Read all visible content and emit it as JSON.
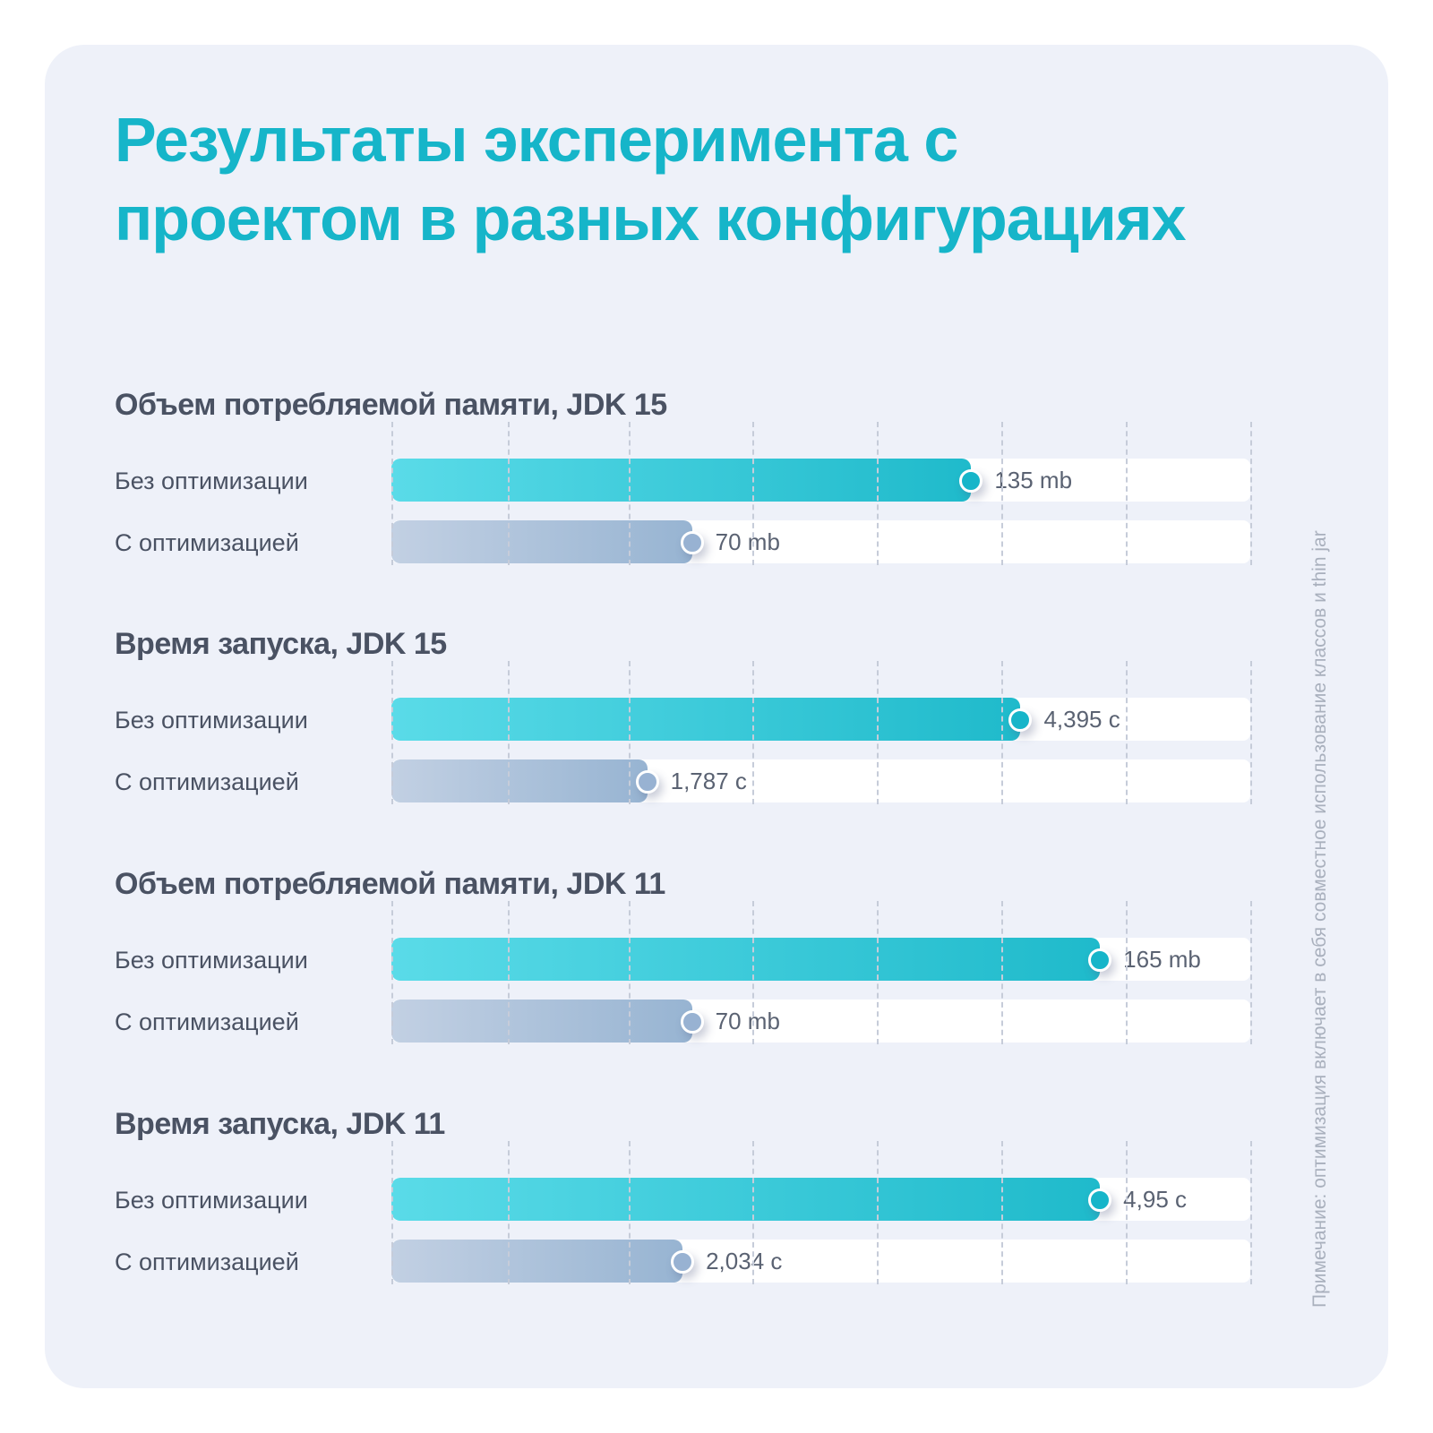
{
  "title": "Результаты эксперимента с проектом в разных конфигурациях",
  "note": "Примечание: оптимизация включает в себя совместное использование классов и thin jar",
  "colors": {
    "accent": "#16b5c9",
    "optimized": "#98b2d2",
    "background": "#eef1f9"
  },
  "chart_data": [
    {
      "type": "bar",
      "title": "Объем потребляемой памяти, JDK 15",
      "categories": [
        "Без оптимизации",
        "С оптимизацией"
      ],
      "values": [
        135,
        70
      ],
      "value_labels": [
        "135 mb",
        "70 mb"
      ],
      "xlim": [
        0,
        200
      ],
      "grid": true
    },
    {
      "type": "bar",
      "title": "Время запуска, JDK 15",
      "categories": [
        "Без оптимизации",
        "С оптимизацией"
      ],
      "values": [
        4.395,
        1.787
      ],
      "value_labels": [
        "4,395 с",
        "1,787 с"
      ],
      "xlim": [
        0,
        6
      ],
      "grid": true
    },
    {
      "type": "bar",
      "title": "Объем потребляемой памяти, JDK 11",
      "categories": [
        "Без оптимизации",
        "С оптимизацией"
      ],
      "values": [
        165,
        70
      ],
      "value_labels": [
        "165 mb",
        "70 mb"
      ],
      "xlim": [
        0,
        200
      ],
      "grid": true
    },
    {
      "type": "bar",
      "title": "Время запуска, JDK 11",
      "categories": [
        "Без оптимизации",
        "С оптимизацией"
      ],
      "values": [
        4.95,
        2.034
      ],
      "value_labels": [
        "4,95 с",
        "2,034 с"
      ],
      "xlim": [
        0,
        6
      ],
      "grid": true
    }
  ]
}
